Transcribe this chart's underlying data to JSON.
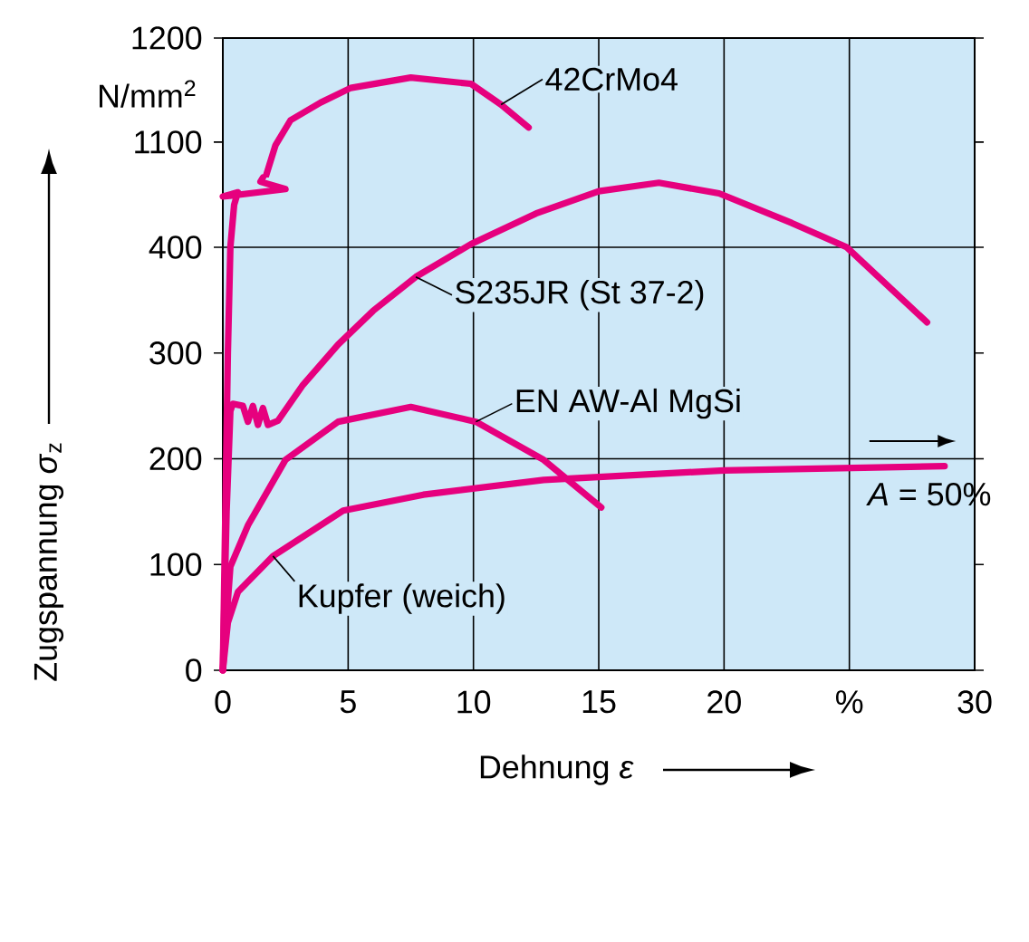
{
  "chart_data": [
    {
      "type": "line",
      "xlim": [
        0,
        30
      ],
      "xticks": [
        0,
        5,
        10,
        15,
        20,
        25,
        30
      ],
      "ylim": [
        1066,
        1200
      ],
      "yticks": [
        1100,
        1200
      ],
      "tick_labels": "y",
      "grid": "x",
      "annotations": [
        "N/mm$^{2}$"
      ],
      "series": [
        {
          "name": "42CrMo4",
          "color": "#e6007e",
          "x": [
            1.7,
            2.1,
            2.7,
            3.9,
            5.1,
            7.5,
            9.9,
            11.1,
            12.2
          ],
          "values": [
            1066,
            1097,
            1121,
            1138,
            1152,
            1162,
            1156,
            1136,
            1114
          ]
        }
      ]
    },
    {
      "type": "line",
      "xlim": [
        0,
        30
      ],
      "xticks": [
        0,
        5,
        10,
        15,
        20,
        {
          "value": 25,
          "label": "%"
        },
        30
      ],
      "ylim": [
        0,
        466
      ],
      "yticks": [
        0,
        100,
        200,
        300,
        400
      ],
      "grid": "x",
      "xlabel": "Dehnung *ε*",
      "ylabel": "Zugspannung *σ*$_{z}$",
      "ref_lines": [
        {
          "axis": "y",
          "value": 200
        },
        {
          "axis": "y",
          "value": 400
        }
      ],
      "annotations": [
        "*A* = 50%"
      ],
      "series": [
        {
          "color": "#e6007e",
          "x": [
            0,
            0.1,
            0.2,
            0.3,
            0.45,
            0.6,
            0,
            2.5,
            1.5,
            1.6
          ],
          "values": [
            0,
            150,
            300,
            400,
            440,
            452,
            448,
            455,
            462,
            466
          ]
        },
        {
          "name": "S235JR (St 37-2)",
          "color": "#e6007e",
          "x": [
            0,
            0.15,
            0.3,
            0.4,
            0.8,
            1.0,
            1.2,
            1.4,
            1.6,
            1.8,
            2.2,
            3.2,
            4.6,
            6.0,
            7.7,
            9.9,
            12.5,
            15,
            17.4,
            19.8,
            22.7,
            24.9,
            28.1
          ],
          "values": [
            0,
            150,
            245,
            252,
            250,
            235,
            250,
            232,
            248,
            232,
            236,
            270,
            308,
            340,
            372,
            403,
            432,
            453,
            461,
            451,
            423,
            400,
            329
          ]
        },
        {
          "name": "EN AW-Al MgSi",
          "color": "#e6007e",
          "x": [
            0,
            0.3,
            1.0,
            2.5,
            4.6,
            7.5,
            10.1,
            12.8,
            15.1
          ],
          "values": [
            0,
            98,
            137,
            199,
            235,
            249,
            235,
            199,
            154
          ]
        },
        {
          "name": "Kupfer (weich)",
          "color": "#e6007e",
          "x": [
            0,
            0.2,
            0.6,
            2,
            4.8,
            8,
            12.8,
            20,
            28.8
          ],
          "values": [
            0,
            45,
            74,
            108,
            151,
            166,
            180,
            189,
            193
          ]
        }
      ]
    }
  ]
}
